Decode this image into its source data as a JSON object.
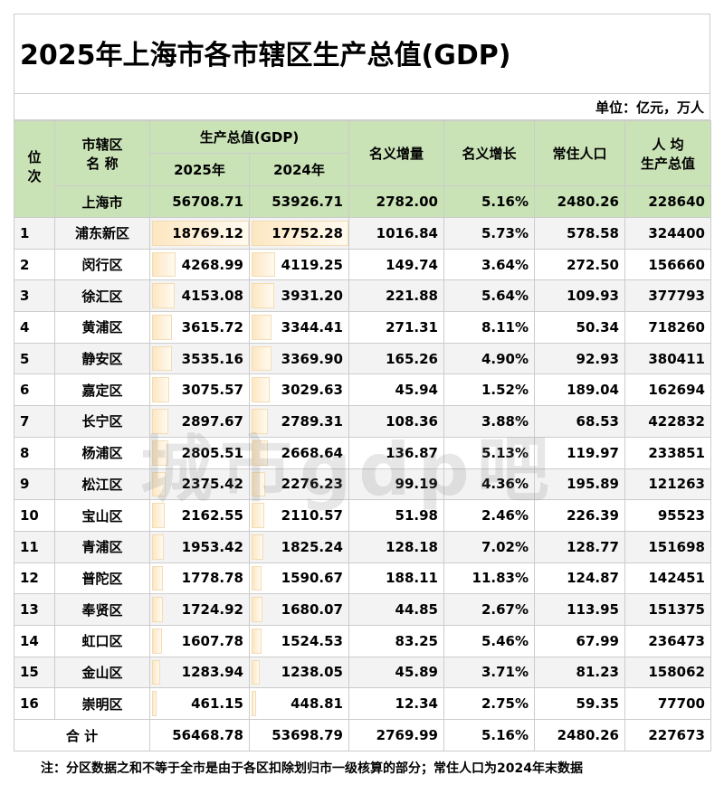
{
  "title": "2025年上海市各市辖区生产总值(GDP)",
  "unit": "单位：亿元，万人",
  "watermark": "城市gdp吧",
  "header": {
    "rank": "位次",
    "district_1": "市辖区",
    "district_2": "名 称",
    "gdp": "生产总值(GDP)",
    "gdp_2025": "2025年",
    "gdp_2024": "2024年",
    "increase": "名义增量",
    "growth": "名义增长",
    "population": "常住人口",
    "per_capita_1": "人 均",
    "per_capita_2": "生产总值"
  },
  "city_row": [
    "上海市",
    "56708.71",
    "53926.71",
    "2782.00",
    "5.16%",
    "2480.26",
    "228640"
  ],
  "table": {
    "rows": [
      [
        "1",
        "浦东新区",
        "18769.12",
        "17752.28",
        "1016.84",
        "5.73%",
        "578.58",
        "324400"
      ],
      [
        "2",
        "闵行区",
        "4268.99",
        "4119.25",
        "149.74",
        "3.64%",
        "272.50",
        "156660"
      ],
      [
        "3",
        "徐汇区",
        "4153.08",
        "3931.20",
        "221.88",
        "5.64%",
        "109.93",
        "377793"
      ],
      [
        "4",
        "黄浦区",
        "3615.72",
        "3344.41",
        "271.31",
        "8.11%",
        "50.34",
        "718260"
      ],
      [
        "5",
        "静安区",
        "3535.16",
        "3369.90",
        "165.26",
        "4.90%",
        "92.93",
        "380411"
      ],
      [
        "6",
        "嘉定区",
        "3075.57",
        "3029.63",
        "45.94",
        "1.52%",
        "189.04",
        "162694"
      ],
      [
        "7",
        "长宁区",
        "2897.67",
        "2789.31",
        "108.36",
        "3.88%",
        "68.53",
        "422832"
      ],
      [
        "8",
        "杨浦区",
        "2805.51",
        "2668.64",
        "136.87",
        "5.13%",
        "119.97",
        "233851"
      ],
      [
        "9",
        "松江区",
        "2375.42",
        "2276.23",
        "99.19",
        "4.36%",
        "195.89",
        "121263"
      ],
      [
        "10",
        "宝山区",
        "2162.55",
        "2110.57",
        "51.98",
        "2.46%",
        "226.39",
        "95523"
      ],
      [
        "11",
        "青浦区",
        "1953.42",
        "1825.24",
        "128.18",
        "7.02%",
        "128.77",
        "151698"
      ],
      [
        "12",
        "普陀区",
        "1778.78",
        "1590.67",
        "188.11",
        "11.83%",
        "124.87",
        "142451"
      ],
      [
        "13",
        "奉贤区",
        "1724.92",
        "1680.07",
        "44.85",
        "2.67%",
        "113.95",
        "151375"
      ],
      [
        "14",
        "虹口区",
        "1607.78",
        "1524.53",
        "83.25",
        "5.46%",
        "67.99",
        "236473"
      ],
      [
        "15",
        "金山区",
        "1283.94",
        "1238.05",
        "45.89",
        "3.71%",
        "81.23",
        "158062"
      ],
      [
        "16",
        "崇明区",
        "461.15",
        "448.81",
        "12.34",
        "2.75%",
        "59.35",
        "77700"
      ]
    ]
  },
  "total_row": [
    "合 计",
    "56468.78",
    "53698.79",
    "2769.99",
    "5.16%",
    "2480.26",
    "227673"
  ],
  "note": "注：分区数据之和不等于全市是由于各区扣除划归市一级核算的部分；常住人口为2024年末数据"
}
